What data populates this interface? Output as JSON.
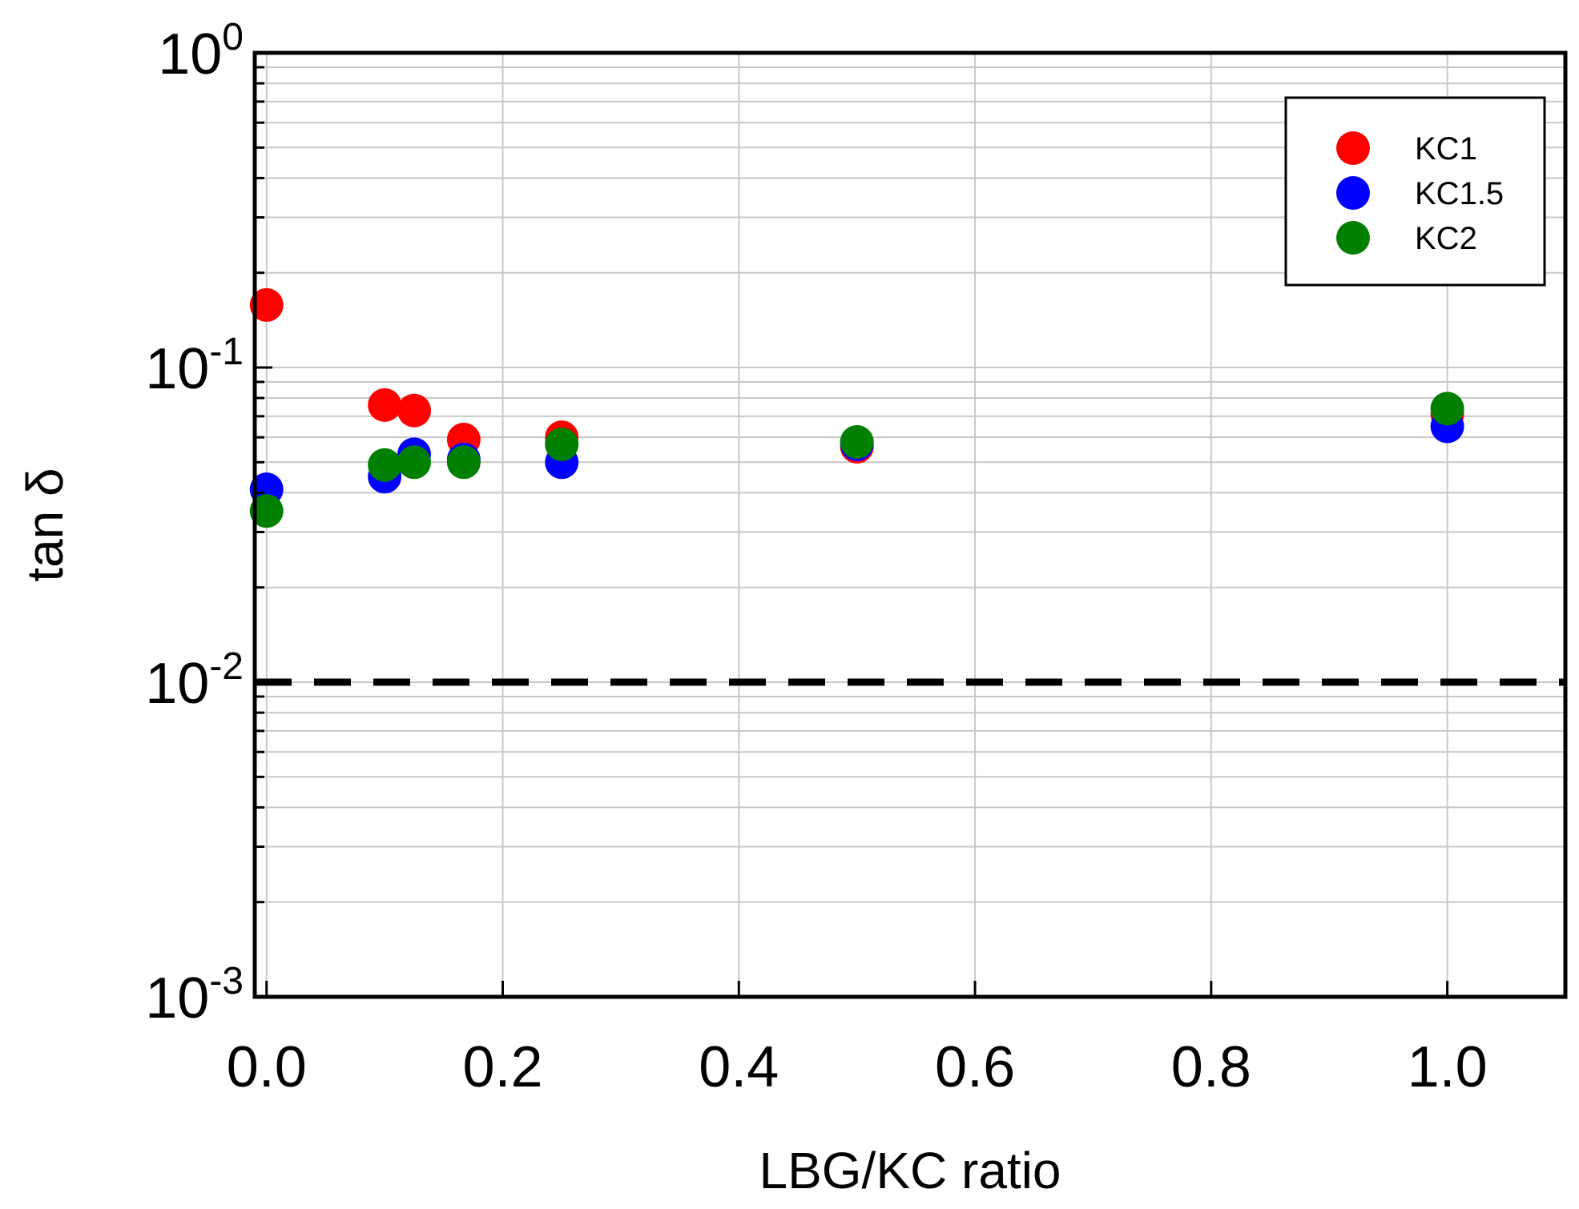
{
  "chart_data": {
    "type": "scatter",
    "title": "",
    "xlabel": "LBG/KC ratio",
    "ylabel": "tan δ",
    "xlim": [
      -0.01,
      1.1
    ],
    "ylim": [
      0.001,
      1
    ],
    "y_scale": "log",
    "grid": true,
    "legend_position": "top-right",
    "x_ticks": [
      {
        "value": 0.0,
        "label": "0.0"
      },
      {
        "value": 0.2,
        "label": "0.2"
      },
      {
        "value": 0.4,
        "label": "0.4"
      },
      {
        "value": 0.6,
        "label": "0.6"
      },
      {
        "value": 0.8,
        "label": "0.8"
      },
      {
        "value": 1.0,
        "label": "1.0"
      }
    ],
    "y_ticks": [
      {
        "value": 0.001,
        "base": "10",
        "exp": "-3"
      },
      {
        "value": 0.01,
        "base": "10",
        "exp": "-2"
      },
      {
        "value": 0.1,
        "base": "10",
        "exp": "-1"
      },
      {
        "value": 1,
        "base": "10",
        "exp": "0"
      }
    ],
    "reference_line": {
      "y": 0.01,
      "style": "dashed",
      "color": "#000000"
    },
    "series": [
      {
        "name": "KC1",
        "color": "#ff0000",
        "x": [
          0.0,
          0.1,
          0.125,
          0.167,
          0.25,
          0.5,
          1.0
        ],
        "y": [
          0.158,
          0.076,
          0.073,
          0.059,
          0.06,
          0.056,
          0.071
        ]
      },
      {
        "name": "KC1.5",
        "color": "#0000ff",
        "x": [
          0.0,
          0.1,
          0.125,
          0.167,
          0.25,
          0.5,
          1.0
        ],
        "y": [
          0.041,
          0.045,
          0.053,
          0.051,
          0.05,
          0.057,
          0.065
        ]
      },
      {
        "name": "KC2",
        "color": "#007f00",
        "x": [
          0.0,
          0.1,
          0.125,
          0.167,
          0.25,
          0.5,
          1.0
        ],
        "y": [
          0.035,
          0.049,
          0.05,
          0.05,
          0.057,
          0.058,
          0.074
        ]
      }
    ]
  }
}
